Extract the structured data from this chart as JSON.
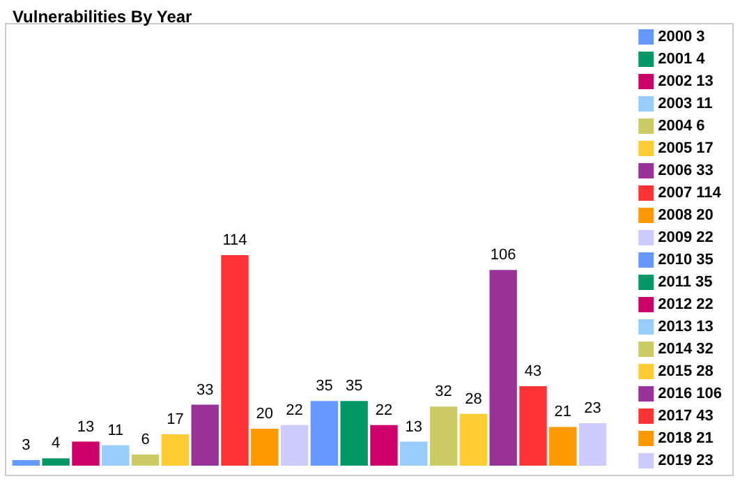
{
  "chart_data": {
    "type": "bar",
    "title": "Vulnerabilities By Year",
    "stacked": true,
    "categories": [
      null,
      null,
      null,
      null,
      null,
      null,
      null,
      null,
      null,
      null,
      null,
      null,
      null,
      null,
      null,
      null,
      null,
      null,
      null,
      null
    ],
    "series": [
      {
        "name": "2000 3",
        "color": "#6699ff",
        "values": [
          3,
          null,
          null,
          null,
          null,
          null,
          null,
          null,
          null,
          null,
          null,
          null,
          null,
          null,
          null,
          null,
          null,
          null,
          null,
          null
        ]
      },
      {
        "name": "2001 4",
        "color": "#009966",
        "values": [
          null,
          4,
          null,
          null,
          null,
          null,
          null,
          null,
          null,
          null,
          null,
          null,
          null,
          null,
          null,
          null,
          null,
          null,
          null,
          null
        ]
      },
      {
        "name": "2002 13",
        "color": "#cc0066",
        "values": [
          null,
          null,
          13,
          null,
          null,
          null,
          null,
          null,
          null,
          null,
          null,
          null,
          null,
          null,
          null,
          null,
          null,
          null,
          null,
          null
        ]
      },
      {
        "name": "2003 11",
        "color": "#99ccff",
        "values": [
          null,
          null,
          null,
          11,
          null,
          null,
          null,
          null,
          null,
          null,
          null,
          null,
          null,
          null,
          null,
          null,
          null,
          null,
          null,
          null
        ]
      },
      {
        "name": "2004 6",
        "color": "#cccc66",
        "values": [
          null,
          null,
          null,
          null,
          6,
          null,
          null,
          null,
          null,
          null,
          null,
          null,
          null,
          null,
          null,
          null,
          null,
          null,
          null,
          null
        ]
      },
      {
        "name": "2005 17",
        "color": "#ffcc33",
        "values": [
          null,
          null,
          null,
          null,
          null,
          17,
          null,
          null,
          null,
          null,
          null,
          null,
          null,
          null,
          null,
          null,
          null,
          null,
          null,
          null
        ]
      },
      {
        "name": "2006 33",
        "color": "#993399",
        "values": [
          null,
          null,
          null,
          null,
          null,
          null,
          33,
          null,
          null,
          null,
          null,
          null,
          null,
          null,
          null,
          null,
          null,
          null,
          null,
          null
        ]
      },
      {
        "name": "2007 114",
        "color": "#ff3333",
        "values": [
          null,
          null,
          null,
          null,
          null,
          null,
          null,
          114,
          null,
          null,
          null,
          null,
          null,
          null,
          null,
          null,
          null,
          null,
          null,
          null
        ]
      },
      {
        "name": "2008 20",
        "color": "#ff9900",
        "values": [
          null,
          null,
          null,
          null,
          null,
          null,
          null,
          null,
          20,
          null,
          null,
          null,
          null,
          null,
          null,
          null,
          null,
          null,
          null,
          null
        ]
      },
      {
        "name": "2009 22",
        "color": "#ccccff",
        "values": [
          null,
          null,
          null,
          null,
          null,
          null,
          null,
          null,
          null,
          22,
          null,
          null,
          null,
          null,
          null,
          null,
          null,
          null,
          null,
          null
        ]
      },
      {
        "name": "2010 35",
        "color": "#6699ff",
        "values": [
          null,
          null,
          null,
          null,
          null,
          null,
          null,
          null,
          null,
          null,
          35,
          null,
          null,
          null,
          null,
          null,
          null,
          null,
          null,
          null
        ]
      },
      {
        "name": "2011 35",
        "color": "#009966",
        "values": [
          null,
          null,
          null,
          null,
          null,
          null,
          null,
          null,
          null,
          null,
          null,
          35,
          null,
          null,
          null,
          null,
          null,
          null,
          null,
          null
        ]
      },
      {
        "name": "2012 22",
        "color": "#cc0066",
        "values": [
          null,
          null,
          null,
          null,
          null,
          null,
          null,
          null,
          null,
          null,
          null,
          null,
          22,
          null,
          null,
          null,
          null,
          null,
          null,
          null
        ]
      },
      {
        "name": "2013 13",
        "color": "#99ccff",
        "values": [
          null,
          null,
          null,
          null,
          null,
          null,
          null,
          null,
          null,
          null,
          null,
          null,
          null,
          13,
          null,
          null,
          null,
          null,
          null,
          null
        ]
      },
      {
        "name": "2014 32",
        "color": "#cccc66",
        "values": [
          null,
          null,
          null,
          null,
          null,
          null,
          null,
          null,
          null,
          null,
          null,
          null,
          null,
          null,
          32,
          null,
          null,
          null,
          null,
          null
        ]
      },
      {
        "name": "2015 28",
        "color": "#ffcc33",
        "values": [
          null,
          null,
          null,
          null,
          null,
          null,
          null,
          null,
          null,
          null,
          null,
          null,
          null,
          null,
          null,
          28,
          null,
          null,
          null,
          null
        ]
      },
      {
        "name": "2016 106",
        "color": "#993399",
        "values": [
          null,
          null,
          null,
          null,
          null,
          null,
          null,
          null,
          null,
          null,
          null,
          null,
          null,
          null,
          null,
          null,
          106,
          null,
          null,
          null
        ]
      },
      {
        "name": "2017 43",
        "color": "#ff3333",
        "values": [
          null,
          null,
          null,
          null,
          null,
          null,
          null,
          null,
          null,
          null,
          null,
          null,
          null,
          null,
          null,
          null,
          null,
          43,
          null,
          null
        ]
      },
      {
        "name": "2018 21",
        "color": "#ff9900",
        "values": [
          null,
          null,
          null,
          null,
          null,
          null,
          null,
          null,
          null,
          null,
          null,
          null,
          null,
          null,
          null,
          null,
          null,
          null,
          21,
          null
        ]
      },
      {
        "name": "2019 23",
        "color": "#ccccff",
        "values": [
          null,
          null,
          null,
          null,
          null,
          null,
          null,
          null,
          null,
          null,
          null,
          null,
          null,
          null,
          null,
          null,
          null,
          null,
          null,
          23
        ]
      }
    ],
    "data_labels": true,
    "legend": "right",
    "tick_labels": false
  }
}
